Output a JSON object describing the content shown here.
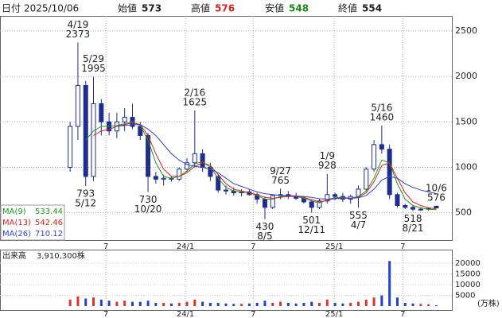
{
  "header": {
    "date_label": "日付",
    "date": "2025/10/06",
    "open_label": "始値",
    "open": 573,
    "high_label": "高値",
    "high": 576,
    "low_label": "安値",
    "low": 548,
    "close_label": "終値",
    "close": 554
  },
  "chart_data": {
    "type": "candlestick",
    "candles": [
      [
        1000,
        1500,
        950,
        1450
      ],
      [
        1450,
        2373,
        1300,
        1900
      ],
      [
        1900,
        1950,
        793,
        900
      ],
      [
        900,
        1995,
        850,
        1700
      ],
      [
        1700,
        1750,
        1350,
        1500
      ],
      [
        1500,
        1600,
        1350,
        1400
      ],
      [
        1400,
        1600,
        1320,
        1500
      ],
      [
        1500,
        1650,
        1400,
        1550
      ],
      [
        1550,
        1700,
        1420,
        1450
      ],
      [
        1450,
        1500,
        1300,
        1350
      ],
      [
        1350,
        1380,
        730,
        900
      ],
      [
        900,
        950,
        820,
        870
      ],
      [
        870,
        920,
        800,
        880
      ],
      [
        880,
        900,
        840,
        870
      ],
      [
        870,
        1000,
        850,
        980
      ],
      [
        980,
        1100,
        950,
        1050
      ],
      [
        1050,
        1625,
        1000,
        1150
      ],
      [
        1150,
        1200,
        950,
        1000
      ],
      [
        1000,
        1050,
        850,
        900
      ],
      [
        900,
        920,
        720,
        750
      ],
      [
        750,
        800,
        700,
        740
      ],
      [
        740,
        780,
        690,
        720
      ],
      [
        720,
        760,
        680,
        730
      ],
      [
        730,
        760,
        690,
        700
      ],
      [
        700,
        720,
        600,
        650
      ],
      [
        650,
        680,
        430,
        560
      ],
      [
        560,
        700,
        540,
        690
      ],
      [
        690,
        765,
        650,
        700
      ],
      [
        700,
        740,
        650,
        680
      ],
      [
        680,
        720,
        640,
        660
      ],
      [
        660,
        680,
        600,
        620
      ],
      [
        620,
        640,
        501,
        560
      ],
      [
        560,
        650,
        540,
        630
      ],
      [
        630,
        928,
        600,
        700
      ],
      [
        700,
        720,
        640,
        680
      ],
      [
        680,
        720,
        620,
        650
      ],
      [
        650,
        700,
        600,
        680
      ],
      [
        680,
        800,
        555,
        760
      ],
      [
        760,
        1000,
        740,
        980
      ],
      [
        980,
        1300,
        950,
        1250
      ],
      [
        1250,
        1460,
        1150,
        1200
      ],
      [
        1200,
        1250,
        650,
        700
      ],
      [
        700,
        720,
        560,
        580
      ],
      [
        580,
        600,
        540,
        560
      ],
      [
        560,
        580,
        518,
        540
      ],
      [
        540,
        560,
        520,
        540
      ],
      [
        540,
        560,
        525,
        548
      ],
      [
        573,
        576,
        548,
        554
      ]
    ],
    "up_color": "#ffffff",
    "down_color": "#1f2d8f",
    "edge_color": "#1f2d8f",
    "ylim": [
      200,
      2665
    ],
    "yticks": [
      500,
      1000,
      1500,
      2000,
      2500
    ],
    "xlim": [
      -9,
      49
    ],
    "xticks": [
      {
        "value": 4.6,
        "label": "7"
      },
      {
        "value": 14.8,
        "label": "24/1"
      },
      {
        "value": 23.5,
        "label": "7"
      },
      {
        "value": 33.9,
        "label": "25/1"
      },
      {
        "value": 42.7,
        "label": "7"
      }
    ],
    "grid": true,
    "annotations": [
      {
        "date": "4/19",
        "value": 2373,
        "type": "high"
      },
      {
        "date": "5/29",
        "value": 1995,
        "type": "high"
      },
      {
        "date": "5/12",
        "value": 793,
        "type": "low"
      },
      {
        "date": "10/20",
        "value": 730,
        "type": "low"
      },
      {
        "date": "2/16",
        "value": 1625,
        "type": "high"
      },
      {
        "date": "8/5",
        "value": 430,
        "type": "low"
      },
      {
        "date": "9/27",
        "value": 765,
        "type": "high"
      },
      {
        "date": "12/11",
        "value": 501,
        "type": "low"
      },
      {
        "date": "1/9",
        "value": 928,
        "type": "high"
      },
      {
        "date": "4/7",
        "value": 555,
        "type": "low"
      },
      {
        "date": "5/16",
        "value": 1460,
        "type": "high"
      },
      {
        "date": "8/21",
        "value": 518,
        "type": "low"
      },
      {
        "date": "10/6",
        "value": 576,
        "type": "high"
      }
    ],
    "moving_averages": [
      {
        "name": "MA(9)",
        "color": "#1a9a1a",
        "latest": 533.44,
        "values": [
          null,
          null,
          1300,
          1400,
          1450,
          1450,
          1460,
          1480,
          1500,
          1460,
          1300,
          1050,
          900,
          880,
          900,
          960,
          1040,
          1060,
          1000,
          880,
          780,
          740,
          730,
          720,
          690,
          650,
          650,
          680,
          690,
          680,
          660,
          630,
          610,
          640,
          670,
          670,
          660,
          680,
          740,
          880,
          1080,
          1050,
          820,
          650,
          580,
          555,
          540,
          533.44
        ]
      },
      {
        "name": "MA(13)",
        "color": "#e02020",
        "latest": 542.46,
        "values": [
          null,
          null,
          null,
          1350,
          1400,
          1420,
          1450,
          1470,
          1490,
          1470,
          1350,
          1150,
          980,
          900,
          900,
          940,
          1010,
          1050,
          1020,
          920,
          820,
          760,
          740,
          720,
          700,
          670,
          660,
          670,
          680,
          680,
          670,
          645,
          620,
          635,
          660,
          665,
          660,
          670,
          720,
          840,
          1020,
          1050,
          880,
          720,
          620,
          580,
          555,
          542.46
        ]
      },
      {
        "name": "MA(26)",
        "color": "#3040e0",
        "latest": 710.12,
        "values": [
          null,
          null,
          null,
          null,
          null,
          null,
          1450,
          1460,
          1470,
          1470,
          1420,
          1350,
          1250,
          1150,
          1080,
          1030,
          1010,
          1000,
          980,
          940,
          880,
          820,
          790,
          760,
          730,
          710,
          700,
          690,
          690,
          685,
          680,
          670,
          655,
          650,
          655,
          660,
          660,
          665,
          690,
          760,
          860,
          900,
          880,
          820,
          780,
          750,
          730,
          710.12
        ]
      }
    ],
    "volume": {
      "title": "出来高",
      "total": {
        "value": 3910300,
        "label": "3,910,300株"
      },
      "unit": "(万株)",
      "up_color": "#e03030",
      "down_color": "#2040d0",
      "ylim": [
        0,
        25900
      ],
      "yticks": [
        5000,
        10000,
        15000,
        20000
      ],
      "values": [
        3000,
        4500,
        3500,
        4000,
        3000,
        2500,
        2000,
        2500,
        2000,
        2000,
        2500,
        1500,
        1500,
        1200,
        1500,
        2000,
        3000,
        2000,
        1500,
        1500,
        1200,
        1000,
        1000,
        1200,
        1500,
        2500,
        1500,
        2000,
        1500,
        1200,
        1500,
        2000,
        1500,
        3000,
        1500,
        1200,
        1500,
        2000,
        3000,
        4000,
        5000,
        21000,
        4000,
        1500,
        1200,
        1000,
        800,
        391
      ]
    }
  }
}
